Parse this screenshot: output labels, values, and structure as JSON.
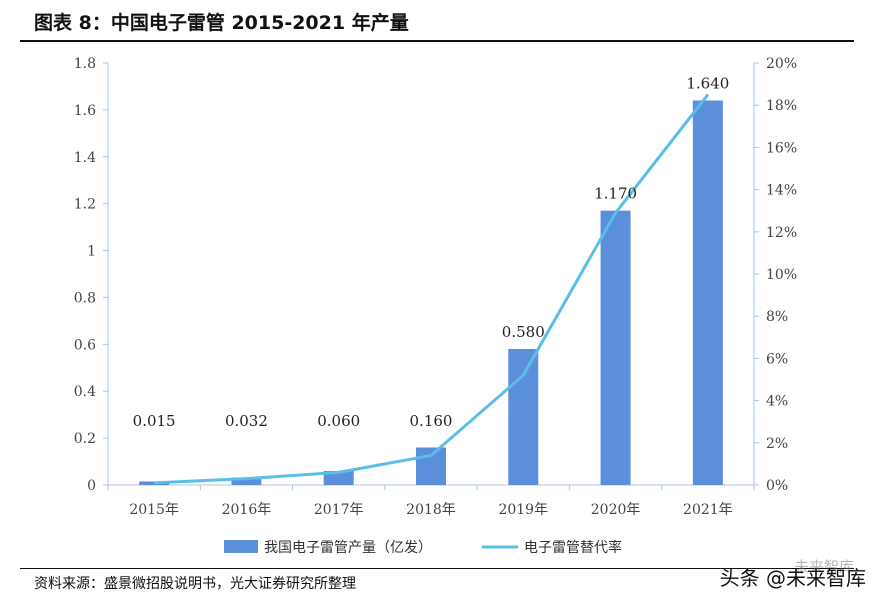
{
  "title": "图表 8：中国电子雷管 2015-2021 年产量",
  "source": "资料来源：盛景微招股说明书，光大证券研究所整理",
  "watermark": "头条 @未来智库",
  "colors": {
    "bar": "#5b8fdc",
    "line": "#5bbde8",
    "axis": "#a9c4e8"
  },
  "chart_data": {
    "type": "bar",
    "categories": [
      "2015年",
      "2016年",
      "2017年",
      "2018年",
      "2019年",
      "2020年",
      "2021年"
    ],
    "series": [
      {
        "name": "我国电子雷管产量（亿发）",
        "type": "bar",
        "axis": "left",
        "values": [
          0.015,
          0.032,
          0.06,
          0.16,
          0.58,
          1.17,
          1.64
        ],
        "labels": [
          "0.015",
          "0.032",
          "0.060",
          "0.160",
          "0.580",
          "1.170",
          "1.640"
        ]
      },
      {
        "name": "电子雷管替代率",
        "type": "line",
        "axis": "right",
        "values": [
          0.1,
          0.3,
          0.6,
          1.4,
          5.2,
          12.9,
          18.5
        ]
      }
    ],
    "y_left": {
      "lim": [
        0,
        1.8
      ],
      "ticks": [
        "0",
        "0.2",
        "0.4",
        "0.6",
        "0.8",
        "1",
        "1.2",
        "1.4",
        "1.6",
        "1.8"
      ]
    },
    "y_right": {
      "lim": [
        0,
        20
      ],
      "ticks": [
        "0%",
        "2%",
        "4%",
        "6%",
        "8%",
        "10%",
        "12%",
        "14%",
        "16%",
        "18%",
        "20%"
      ]
    },
    "legend_position": "bottom",
    "grid": false
  }
}
